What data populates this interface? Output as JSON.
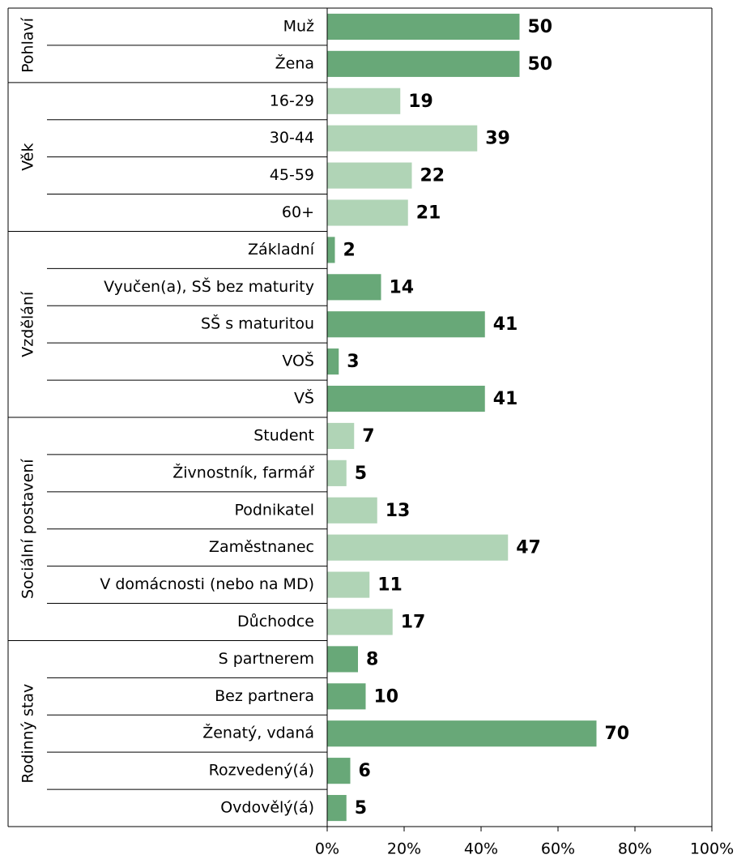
{
  "chart_data": {
    "type": "bar",
    "orientation": "horizontal",
    "groups": [
      {
        "name": "Pohlaví",
        "color": "#68a878",
        "categories": [
          "Muž",
          "Žena"
        ],
        "values": [
          50,
          50
        ]
      },
      {
        "name": "Věk",
        "color": "#b0d4b6",
        "categories": [
          "16-29",
          "30-44",
          "45-59",
          "60+"
        ],
        "values": [
          19,
          39,
          22,
          21
        ]
      },
      {
        "name": "Vzdělání",
        "color": "#68a878",
        "categories": [
          "Základní",
          "Vyučen(a), SŠ bez maturity",
          "SŠ s maturitou",
          "VOŠ",
          "VŠ"
        ],
        "values": [
          2,
          14,
          41,
          3,
          41
        ]
      },
      {
        "name": "Sociální postavení",
        "color": "#b0d4b6",
        "categories": [
          "Student",
          "Živnostník, farmář",
          "Podnikatel",
          "Zaměstnanec",
          "V domácnosti (nebo na MD)",
          "Důchodce"
        ],
        "values": [
          7,
          5,
          13,
          47,
          11,
          17
        ]
      },
      {
        "name": "Rodinný stav",
        "color": "#68a878",
        "categories": [
          "S partnerem",
          "Bez partnera",
          "Ženatý, vdaná",
          "Rozvedený(á)",
          "Ovdovělý(á)"
        ],
        "values": [
          8,
          10,
          70,
          6,
          5
        ]
      }
    ],
    "xlim": [
      0,
      100
    ],
    "xticks": [
      {
        "value": 0,
        "label": "0%"
      },
      {
        "value": 20,
        "label": "20%"
      },
      {
        "value": 40,
        "label": "40%"
      },
      {
        "value": 60,
        "label": "60%"
      },
      {
        "value": 80,
        "label": "80%"
      },
      {
        "value": 100,
        "label": "100%"
      }
    ]
  }
}
